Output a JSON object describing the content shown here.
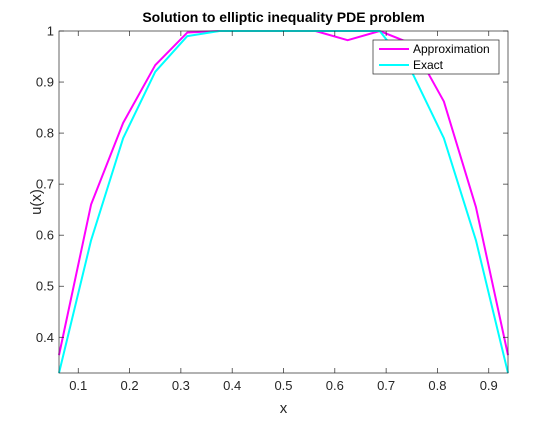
{
  "chart_data": {
    "type": "line",
    "title": "Solution to elliptic inequality PDE problem",
    "xlabel": "x",
    "ylabel": "u(x)",
    "xlim": [
      0.0625,
      0.9375
    ],
    "ylim": [
      0.33,
      1.0
    ],
    "xticks": [
      0.1,
      0.2,
      0.3,
      0.4,
      0.5,
      0.6,
      0.7,
      0.8,
      0.9
    ],
    "yticks": [
      0.4,
      0.5,
      0.6,
      0.7,
      0.8,
      0.9,
      1.0
    ],
    "xtick_labels": [
      "0.1",
      "0.2",
      "0.3",
      "0.4",
      "0.5",
      "0.6",
      "0.7",
      "0.8",
      "0.9"
    ],
    "ytick_labels": [
      "0.4",
      "0.5",
      "0.6",
      "0.7",
      "0.8",
      "0.9",
      "1"
    ],
    "grid": false,
    "legend_position": "top-right",
    "x": [
      0.0625,
      0.125,
      0.1875,
      0.25,
      0.3125,
      0.375,
      0.4375,
      0.5,
      0.5625,
      0.625,
      0.6875,
      0.75,
      0.8125,
      0.875,
      0.9375
    ],
    "series": [
      {
        "name": "Approximation",
        "color": "#ff00ff",
        "values": [
          0.365,
          0.66,
          0.82,
          0.933,
          0.997,
          1.0,
          1.0,
          1.0,
          1.0,
          0.982,
          1.0,
          0.975,
          0.862,
          0.655,
          0.365
        ]
      },
      {
        "name": "Exact",
        "color": "#00ffff",
        "values": [
          0.33,
          0.59,
          0.79,
          0.92,
          0.99,
          1.0,
          1.0,
          1.0,
          1.0,
          1.0,
          1.0,
          0.92,
          0.79,
          0.59,
          0.33
        ]
      }
    ]
  }
}
